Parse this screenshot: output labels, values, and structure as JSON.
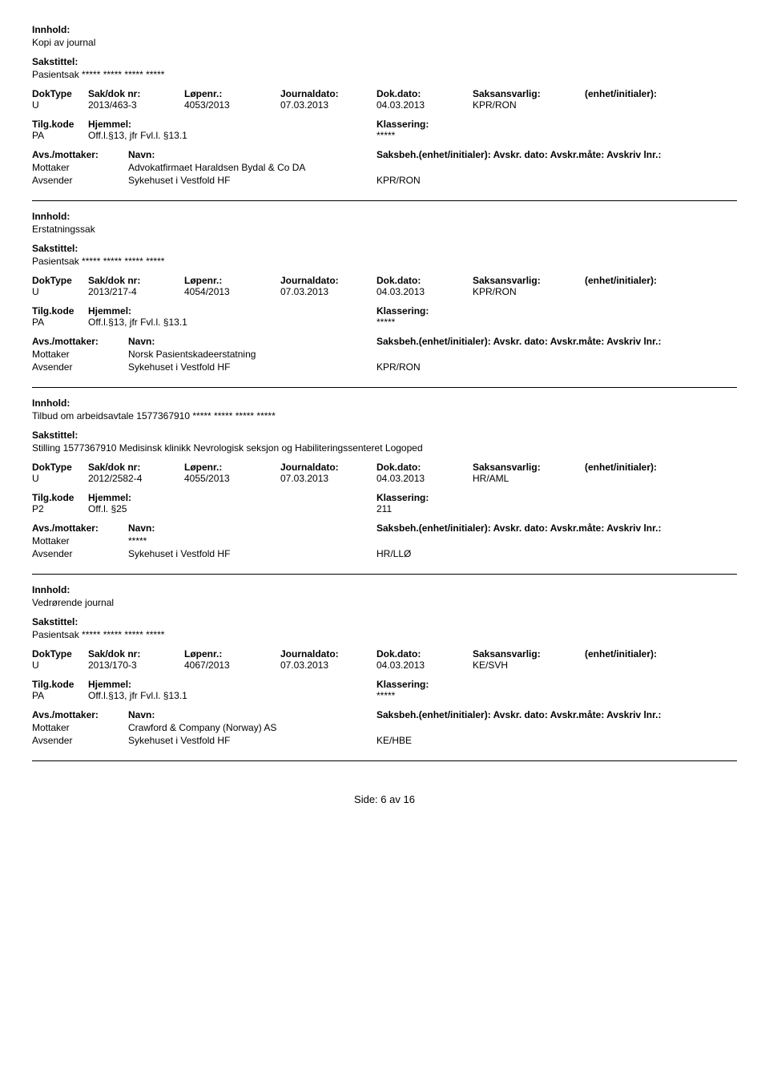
{
  "labels": {
    "innhold": "Innhold:",
    "sakstittel": "Sakstittel:",
    "doktype": "DokType",
    "sakdok": "Sak/dok nr:",
    "lopenr": "Løpenr.:",
    "journaldato": "Journaldato:",
    "dokdato": "Dok.dato:",
    "saksansvarlig": "Saksansvarlig:",
    "enhet": "(enhet/initialer):",
    "tilgkode": "Tilg.kode",
    "hjemmel": "Hjemmel:",
    "klassering": "Klassering:",
    "avsmottaker": "Avs./mottaker:",
    "navn": "Navn:",
    "saksbeh_full": "Saksbeh.(enhet/initialer): Avskr. dato:  Avskr.måte: Avskriv lnr.:",
    "mottaker": "Mottaker",
    "avsender": "Avsender",
    "footer_prefix": "Side:",
    "footer_page": " 6 ",
    "footer_sep": "av",
    "footer_total": " 16"
  },
  "entries": [
    {
      "innhold": "Kopi av journal",
      "sakstittel": "Pasientsak ***** ***** ***** *****",
      "doktype": "U",
      "sakdok": "2013/463-3",
      "lopenr": "4053/2013",
      "journaldato": "07.03.2013",
      "dokdato": "04.03.2013",
      "saksansvarlig": "KPR/RON",
      "tilgkode": "PA",
      "hjemmel": "Off.l.§13, jfr Fvl.l. §13.1",
      "klassering": "*****",
      "parties": [
        {
          "role": "Mottaker",
          "name": "Advokatfirmaet Haraldsen Bydal & Co DA",
          "unit": ""
        },
        {
          "role": "Avsender",
          "name": "Sykehuset i Vestfold HF",
          "unit": "KPR/RON"
        }
      ]
    },
    {
      "innhold": "Erstatningssak",
      "sakstittel": "Pasientsak ***** ***** ***** *****",
      "doktype": "U",
      "sakdok": "2013/217-4",
      "lopenr": "4054/2013",
      "journaldato": "07.03.2013",
      "dokdato": "04.03.2013",
      "saksansvarlig": "KPR/RON",
      "tilgkode": "PA",
      "hjemmel": "Off.l.§13, jfr Fvl.l. §13.1",
      "klassering": "*****",
      "parties": [
        {
          "role": "Mottaker",
          "name": "Norsk Pasientskadeerstatning",
          "unit": ""
        },
        {
          "role": "Avsender",
          "name": "Sykehuset i Vestfold HF",
          "unit": "KPR/RON"
        }
      ]
    },
    {
      "innhold": "Tilbud om arbeidsavtale 1577367910 ***** ***** ***** *****",
      "sakstittel": "Stilling 1577367910 Medisinsk klinikk Nevrologisk seksjon og Habiliteringssenteret  Logoped",
      "doktype": "U",
      "sakdok": "2012/2582-4",
      "lopenr": "4055/2013",
      "journaldato": "07.03.2013",
      "dokdato": "04.03.2013",
      "saksansvarlig": "HR/AML",
      "tilgkode": "P2",
      "hjemmel": "Off.l. §25",
      "klassering": "211",
      "parties": [
        {
          "role": "Mottaker",
          "name": "*****",
          "unit": ""
        },
        {
          "role": "Avsender",
          "name": "Sykehuset i Vestfold HF",
          "unit": "HR/LLØ"
        }
      ]
    },
    {
      "innhold": "Vedrørende journal",
      "sakstittel": "Pasientsak ***** ***** ***** *****",
      "doktype": "U",
      "sakdok": "2013/170-3",
      "lopenr": "4067/2013",
      "journaldato": "07.03.2013",
      "dokdato": "04.03.2013",
      "saksansvarlig": "KE/SVH",
      "tilgkode": "PA",
      "hjemmel": "Off.l.§13, jfr Fvl.l. §13.1",
      "klassering": "*****",
      "parties": [
        {
          "role": "Mottaker",
          "name": "Crawford & Company (Norway) AS",
          "unit": ""
        },
        {
          "role": "Avsender",
          "name": "Sykehuset i Vestfold HF",
          "unit": "KE/HBE"
        }
      ]
    }
  ]
}
